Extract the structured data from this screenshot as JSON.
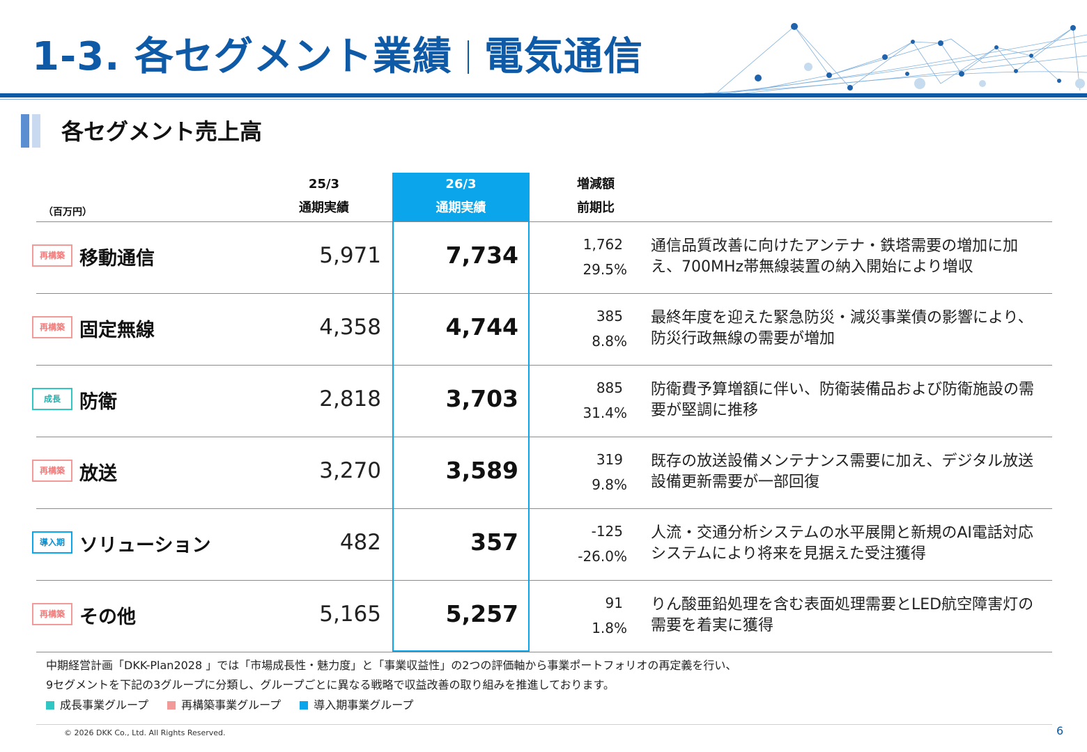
{
  "title": {
    "main": "1-3. 各セグメント業績",
    "sub": "電気通信"
  },
  "subtitle": "各セグメント売上高",
  "table": {
    "unit": "（百万円）",
    "col_prev": {
      "line1": "25/3",
      "line2": "通期実績"
    },
    "col_cur": {
      "line1": "26/3",
      "line2": "通期実績"
    },
    "col_diff": {
      "line1": "増減額",
      "line2": "前期比"
    },
    "rows": [
      {
        "badge": "再構築",
        "segment": "移動通信",
        "prev": "5,971",
        "cur": "7,734",
        "diff": "1,762",
        "pct": "29.5%",
        "comment": "通信品質改善に向けたアンテナ・鉄塔需要の増加に加え、700MHz帯無線装置の納入開始により増収"
      },
      {
        "badge": "再構築",
        "segment": "固定無線",
        "prev": "4,358",
        "cur": "4,744",
        "diff": "385",
        "pct": "8.8%",
        "comment": "最終年度を迎えた緊急防災・減災事業債の影響により、防災行政無線の需要が増加"
      },
      {
        "badge": "成長",
        "segment": "防衛",
        "prev": "2,818",
        "cur": "3,703",
        "diff": "885",
        "pct": "31.4%",
        "comment": "防衛費予算増額に伴い、防衛装備品および防衛施設の需要が堅調に推移"
      },
      {
        "badge": "再構築",
        "segment": "放送",
        "prev": "3,270",
        "cur": "3,589",
        "diff": "319",
        "pct": "9.8%",
        "comment": "既存の放送設備メンテナンス需要に加え、デジタル放送設備更新需要が一部回復"
      },
      {
        "badge": "導入期",
        "segment": "ソリューション",
        "prev": "482",
        "cur": "357",
        "diff": "-125",
        "pct": "-26.0%",
        "comment": "人流・交通分析システムの水平展開と新規のAI電話対応システムにより将来を見据えた受注獲得"
      },
      {
        "badge": "再構築",
        "segment": "その他",
        "prev": "5,165",
        "cur": "5,257",
        "diff": "91",
        "pct": "1.8%",
        "comment": "りん酸亜鉛処理を含む表面処理需要とLED航空障害灯の需要を着実に獲得"
      }
    ]
  },
  "footnote": {
    "line1": "中期経営計画「DKK-Plan2028 」では「市場成長性・魅力度」と「事業収益性」の2つの評価軸から事業ポートフォリオの再定義を行い、",
    "line2": "9セグメントを下記の3グループに分類し、グループごとに異なる戦略で収益改善の取り組みを推進しております。"
  },
  "legend": [
    {
      "label": "成長事業グループ",
      "color": "#2fc6c4"
    },
    {
      "label": "再構築事業グループ",
      "color": "#f29a98"
    },
    {
      "label": "導入期事業グループ",
      "color": "#0aa5ea"
    }
  ],
  "copyright": "© 2026 DKK Co., Ltd. All Rights Reserved.",
  "page_number": "6"
}
